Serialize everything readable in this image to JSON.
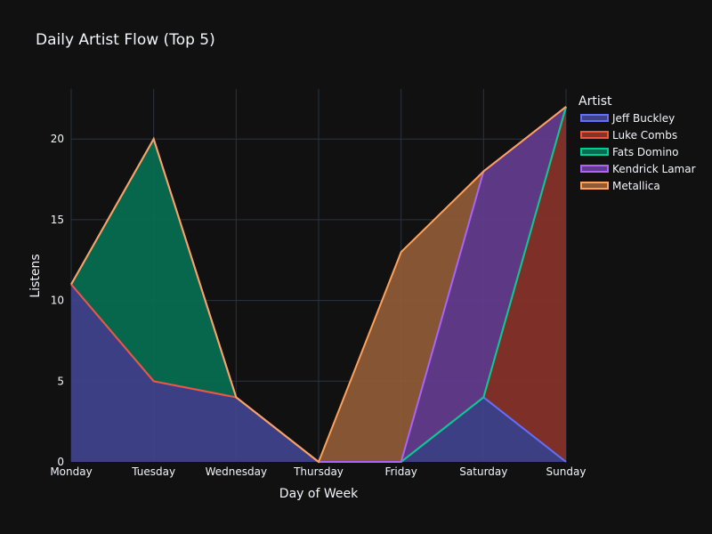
{
  "chart_data": {
    "type": "area",
    "stacked": true,
    "title": "Daily Artist Flow (Top 5)",
    "xlabel": "Day of Week",
    "ylabel": "Listens",
    "categories": [
      "Monday",
      "Tuesday",
      "Wednesday",
      "Thursday",
      "Friday",
      "Saturday",
      "Sunday"
    ],
    "yticks": [
      0,
      5,
      10,
      15,
      20
    ],
    "ylim": [
      0,
      23.1
    ],
    "grid": true,
    "legend": {
      "title": "Artist",
      "position": "top-right"
    },
    "series": [
      {
        "name": "Jeff Buckley",
        "color": "#636efa",
        "fill": "#3f428a",
        "values": [
          11,
          5,
          4,
          0,
          0,
          4,
          0
        ]
      },
      {
        "name": "Luke Combs",
        "color": "#ef553b",
        "fill": "#85322a",
        "values": [
          0,
          0,
          0,
          0,
          0,
          0,
          22
        ]
      },
      {
        "name": "Fats Domino",
        "color": "#00cc96",
        "fill": "#066d50",
        "values": [
          0,
          15,
          0,
          0,
          0,
          0,
          0
        ]
      },
      {
        "name": "Kendrick Lamar",
        "color": "#ab63fa",
        "fill": "#613b8c",
        "values": [
          0,
          0,
          0,
          0,
          0,
          14,
          0
        ]
      },
      {
        "name": "Metallica",
        "color": "#ffa15a",
        "fill": "#8d5b37",
        "values": [
          0,
          0,
          0,
          0,
          13,
          0,
          0
        ]
      }
    ]
  }
}
